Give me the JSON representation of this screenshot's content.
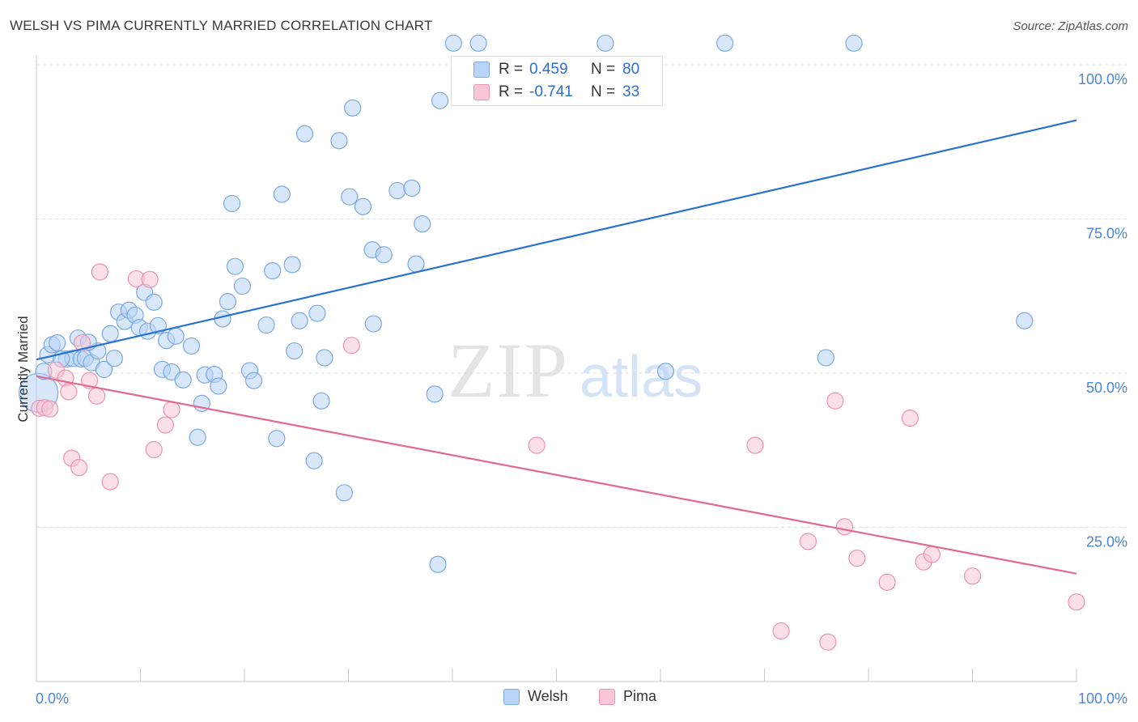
{
  "header": {
    "title": "WELSH VS PIMA CURRENTLY MARRIED CORRELATION CHART",
    "source": "Source: ZipAtlas.com"
  },
  "watermark": {
    "zip": "ZIP",
    "atlas": "atlas"
  },
  "colors": {
    "welsh_fill": "#b8d4f6",
    "welsh_stroke": "#7aa9e4",
    "welsh_line": "#2872d4",
    "pima_fill": "#f8c6d6",
    "pima_stroke": "#ec93b1",
    "pima_line": "#e2698f",
    "stat_value": "#2b6fd1",
    "axis_label": "#4a86d8",
    "grid": "#dddddd"
  },
  "stats": {
    "welsh": {
      "r_label": "R =",
      "r_value": "0.459",
      "n_label": "N =",
      "n_value": "80"
    },
    "pima": {
      "r_label": "R =",
      "r_value": "-0.741",
      "n_label": "N =",
      "n_value": "33"
    }
  },
  "legend": {
    "welsh": "Welsh",
    "pima": "Pima"
  },
  "chart_data": {
    "type": "scatter",
    "ylabel": "Currently Married",
    "xlabel": "",
    "xlim": [
      0,
      100
    ],
    "ylim": [
      0,
      100
    ],
    "x_ticks": [
      "0.0%",
      "100.0%"
    ],
    "y_ticks": [
      {
        "value": 25,
        "label": "25.0%"
      },
      {
        "value": 50,
        "label": "50.0%"
      },
      {
        "value": 75,
        "label": "75.0%"
      },
      {
        "value": 100,
        "label": "100.0%"
      }
    ],
    "grid": true,
    "legend_position": "bottom-center",
    "series": [
      {
        "name": "Welsh",
        "trend": {
          "x": [
            0,
            100
          ],
          "y": [
            52.2,
            91.0
          ]
        },
        "points": [
          [
            0.2,
            46.8,
            24
          ],
          [
            0.7,
            50.3,
            10
          ],
          [
            1.1,
            53.0,
            10
          ],
          [
            1.5,
            54.6,
            10
          ],
          [
            2.0,
            54.9,
            10
          ],
          [
            2.9,
            52.3,
            10
          ],
          [
            3.5,
            52.4,
            10
          ],
          [
            4.0,
            55.7,
            10
          ],
          [
            4.3,
            52.3,
            10
          ],
          [
            4.7,
            52.4,
            10
          ],
          [
            5.3,
            51.7,
            10
          ],
          [
            5.9,
            53.6,
            10
          ],
          [
            6.5,
            50.6,
            10
          ],
          [
            7.1,
            56.4,
            10
          ],
          [
            7.5,
            52.4,
            10
          ],
          [
            7.9,
            59.9,
            10
          ],
          [
            8.5,
            58.4,
            10
          ],
          [
            8.9,
            60.2,
            10
          ],
          [
            9.5,
            59.4,
            10
          ],
          [
            9.9,
            57.4,
            10
          ],
          [
            10.4,
            63.1,
            10
          ],
          [
            10.7,
            56.8,
            10
          ],
          [
            11.3,
            61.5,
            10
          ],
          [
            11.7,
            57.7,
            10
          ],
          [
            12.1,
            50.6,
            10
          ],
          [
            12.5,
            55.3,
            10
          ],
          [
            13.0,
            50.2,
            10
          ],
          [
            13.4,
            56.0,
            10
          ],
          [
            14.1,
            48.9,
            10
          ],
          [
            14.9,
            54.4,
            10
          ],
          [
            15.5,
            39.6,
            10
          ],
          [
            15.9,
            45.1,
            10
          ],
          [
            16.2,
            49.7,
            10
          ],
          [
            17.1,
            49.8,
            10
          ],
          [
            17.5,
            47.9,
            10
          ],
          [
            17.9,
            58.8,
            10
          ],
          [
            18.4,
            61.6,
            10
          ],
          [
            18.8,
            77.5,
            10
          ],
          [
            19.1,
            67.3,
            10
          ],
          [
            19.8,
            64.1,
            10
          ],
          [
            20.5,
            50.4,
            10
          ],
          [
            20.9,
            48.8,
            10
          ],
          [
            22.1,
            57.8,
            10
          ],
          [
            22.7,
            66.6,
            10
          ],
          [
            23.1,
            39.4,
            10
          ],
          [
            23.6,
            79.0,
            10
          ],
          [
            24.6,
            67.6,
            10
          ],
          [
            24.8,
            53.6,
            10
          ],
          [
            25.3,
            58.5,
            10
          ],
          [
            25.8,
            88.8,
            10
          ],
          [
            26.7,
            35.8,
            10
          ],
          [
            27.0,
            59.7,
            10
          ],
          [
            27.4,
            45.5,
            10
          ],
          [
            27.7,
            52.5,
            10
          ],
          [
            29.1,
            87.7,
            10
          ],
          [
            29.6,
            30.6,
            10
          ],
          [
            30.1,
            78.6,
            10
          ],
          [
            30.4,
            93.0,
            10
          ],
          [
            31.4,
            77.0,
            10
          ],
          [
            32.3,
            70.0,
            10
          ],
          [
            32.4,
            58.0,
            10
          ],
          [
            33.4,
            69.2,
            10
          ],
          [
            34.7,
            79.6,
            10
          ],
          [
            36.1,
            80.0,
            10
          ],
          [
            36.5,
            67.7,
            10
          ],
          [
            37.1,
            74.2,
            10
          ],
          [
            38.3,
            46.6,
            10
          ],
          [
            38.6,
            19.0,
            10
          ],
          [
            38.8,
            94.2,
            10
          ],
          [
            40.1,
            103.5,
            10
          ],
          [
            42.5,
            103.5,
            10
          ],
          [
            47.5,
            97.3,
            10
          ],
          [
            54.7,
            103.5,
            10
          ],
          [
            60.5,
            50.3,
            10
          ],
          [
            66.2,
            103.5,
            10
          ],
          [
            75.9,
            52.5,
            10
          ],
          [
            78.6,
            103.5,
            10
          ],
          [
            95.0,
            58.5,
            10
          ],
          [
            2.4,
            52.3,
            10
          ],
          [
            5.0,
            55.0,
            10
          ]
        ]
      },
      {
        "name": "Pima",
        "trend": {
          "x": [
            0,
            100
          ],
          "y": [
            49.5,
            17.5
          ]
        },
        "points": [
          [
            0.3,
            44.3,
            10
          ],
          [
            0.8,
            44.4,
            10
          ],
          [
            1.3,
            44.2,
            10
          ],
          [
            1.9,
            50.5,
            10
          ],
          [
            2.8,
            49.2,
            10
          ],
          [
            3.1,
            47.0,
            10
          ],
          [
            3.4,
            36.2,
            10
          ],
          [
            4.1,
            34.7,
            10
          ],
          [
            4.4,
            54.9,
            10
          ],
          [
            5.1,
            48.8,
            10
          ],
          [
            5.8,
            46.3,
            10
          ],
          [
            6.1,
            66.4,
            10
          ],
          [
            7.1,
            32.4,
            10
          ],
          [
            9.6,
            65.3,
            10
          ],
          [
            10.9,
            65.2,
            10
          ],
          [
            11.3,
            37.6,
            10
          ],
          [
            12.4,
            41.6,
            10
          ],
          [
            13.0,
            44.1,
            10
          ],
          [
            30.3,
            54.5,
            10
          ],
          [
            48.1,
            38.3,
            10
          ],
          [
            69.1,
            38.3,
            10
          ],
          [
            74.2,
            22.7,
            10
          ],
          [
            76.1,
            6.4,
            10
          ],
          [
            76.8,
            45.5,
            10
          ],
          [
            77.7,
            25.1,
            10
          ],
          [
            78.9,
            20.0,
            10
          ],
          [
            81.8,
            16.1,
            10
          ],
          [
            84.0,
            42.7,
            10
          ],
          [
            85.3,
            19.4,
            10
          ],
          [
            86.1,
            20.6,
            10
          ],
          [
            90.0,
            17.1,
            10
          ],
          [
            100.0,
            12.9,
            10
          ],
          [
            71.6,
            8.2,
            10
          ]
        ]
      }
    ]
  }
}
